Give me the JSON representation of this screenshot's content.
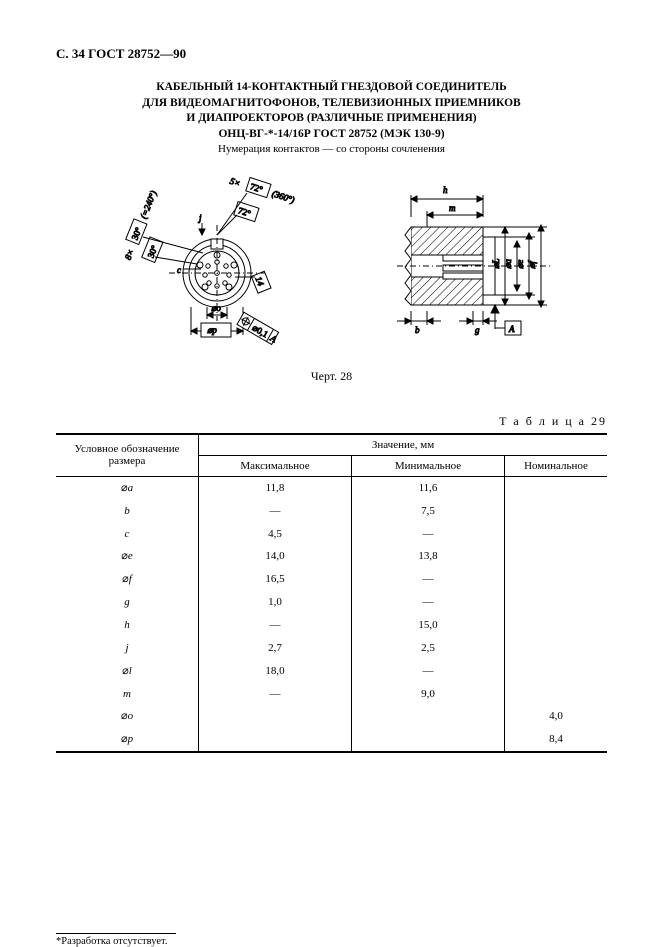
{
  "header": "С. 34 ГОСТ 28752—90",
  "title": {
    "line1": "КАБЕЛЬНЫЙ 14-КОНТАКТНЫЙ ГНЕЗДОВОЙ СОЕДИНИТЕЛЬ",
    "line2": "ДЛЯ ВИДЕОМАГНИТОФОНОВ, ТЕЛЕВИЗИОННЫХ ПРИЕМНИКОВ",
    "line3": "И ДИАПРОЕКТОРОВ (РАЗЛИЧНЫЕ ПРИМЕНЕНИЯ)",
    "line4": "ОНЦ-ВГ-*-14/16Р ГОСТ 28752 (МЭК 130-9)",
    "sub": "Нумерация контактов — со стороны сочленения"
  },
  "figure": {
    "caption": "Черт. 28",
    "left": {
      "labels": {
        "a1": "5×",
        "a2": "72°",
        "a3": "(360°)",
        "b1": "72°",
        "c1": "8×",
        "c2": "30°",
        "c3": "(=240°)",
        "d1": "30°",
        "j": "j",
        "c": "c",
        "dp": "⌀p",
        "do": "⌀o",
        "tol": "⌀0,1",
        "tolA": "A",
        "n14": "14"
      },
      "colors": {
        "stroke": "#000000",
        "fill": "#ffffff",
        "hatch": "#000000"
      }
    },
    "right": {
      "labels": {
        "h": "h",
        "m": "m",
        "b": "b",
        "g": "g",
        "dL": "⌀L",
        "da": "⌀a",
        "de": "⌀e",
        "df": "⌀f",
        "A": "A"
      },
      "colors": {
        "stroke": "#000000",
        "fill": "#ffffff",
        "hatch": "#000000"
      }
    }
  },
  "table": {
    "label": "Т а б л и ц а  29",
    "head": {
      "sym": "Условное обозначение\nразмера",
      "val": "Значение, мм",
      "max": "Максимальное",
      "min": "Минимальное",
      "nom": "Номинальное"
    },
    "rows": [
      {
        "sym": "⌀a",
        "max": "11,8",
        "min": "11,6",
        "nom": ""
      },
      {
        "sym": "b",
        "max": "—",
        "min": "7,5",
        "nom": ""
      },
      {
        "sym": "c",
        "max": "4,5",
        "min": "—",
        "nom": ""
      },
      {
        "sym": "⌀e",
        "max": "14,0",
        "min": "13,8",
        "nom": ""
      },
      {
        "sym": "⌀f",
        "max": "16,5",
        "min": "—",
        "nom": ""
      },
      {
        "sym": "g",
        "max": "1,0",
        "min": "—",
        "nom": ""
      },
      {
        "sym": "h",
        "max": "—",
        "min": "15,0",
        "nom": ""
      },
      {
        "sym": "j",
        "max": "2,7",
        "min": "2,5",
        "nom": ""
      },
      {
        "sym": "⌀l",
        "max": "18,0",
        "min": "—",
        "nom": ""
      },
      {
        "sym": "m",
        "max": "—",
        "min": "9,0",
        "nom": ""
      },
      {
        "sym": "⌀o",
        "max": "",
        "min": "",
        "nom": "4,0"
      },
      {
        "sym": "⌀p",
        "max": "",
        "min": "",
        "nom": "8,4"
      }
    ]
  },
  "footnote": "*Разработка отсутствует."
}
